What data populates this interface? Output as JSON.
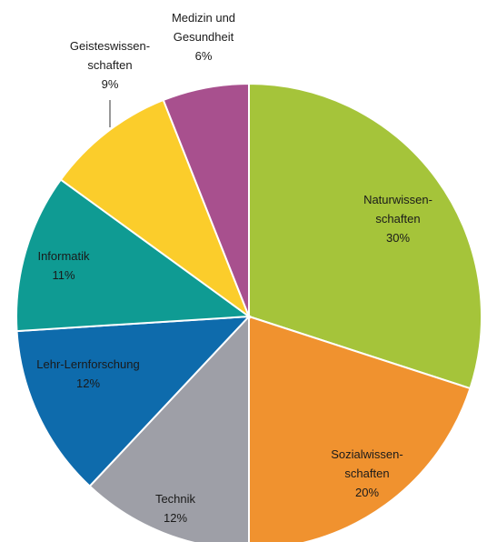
{
  "chart_data": {
    "type": "pie",
    "title": "",
    "start_angle_deg": 0,
    "direction": "clockwise",
    "slices": [
      {
        "label_lines": [
          "Naturwissen-",
          "schaften"
        ],
        "pct_label": "30%",
        "value": 30,
        "color": "#a5c43a"
      },
      {
        "label_lines": [
          "Sozialwissen-",
          "schaften"
        ],
        "pct_label": "20%",
        "value": 20,
        "color": "#f0922f"
      },
      {
        "label_lines": [
          "Technik"
        ],
        "pct_label": "12%",
        "value": 12,
        "color": "#9e9fa7"
      },
      {
        "label_lines": [
          "Lehr-Lernforschung"
        ],
        "pct_label": "12%",
        "value": 12,
        "color": "#0e6bac"
      },
      {
        "label_lines": [
          "Informatik"
        ],
        "pct_label": "11%",
        "value": 11,
        "color": "#0f9b93"
      },
      {
        "label_lines": [
          "Geisteswissen-",
          "schaften"
        ],
        "pct_label": "9%",
        "value": 9,
        "color": "#fbcd2b"
      },
      {
        "label_lines": [
          "Medizin und",
          "Gesundheit"
        ],
        "pct_label": "6%",
        "value": 6,
        "color": "#a8508e"
      }
    ]
  }
}
